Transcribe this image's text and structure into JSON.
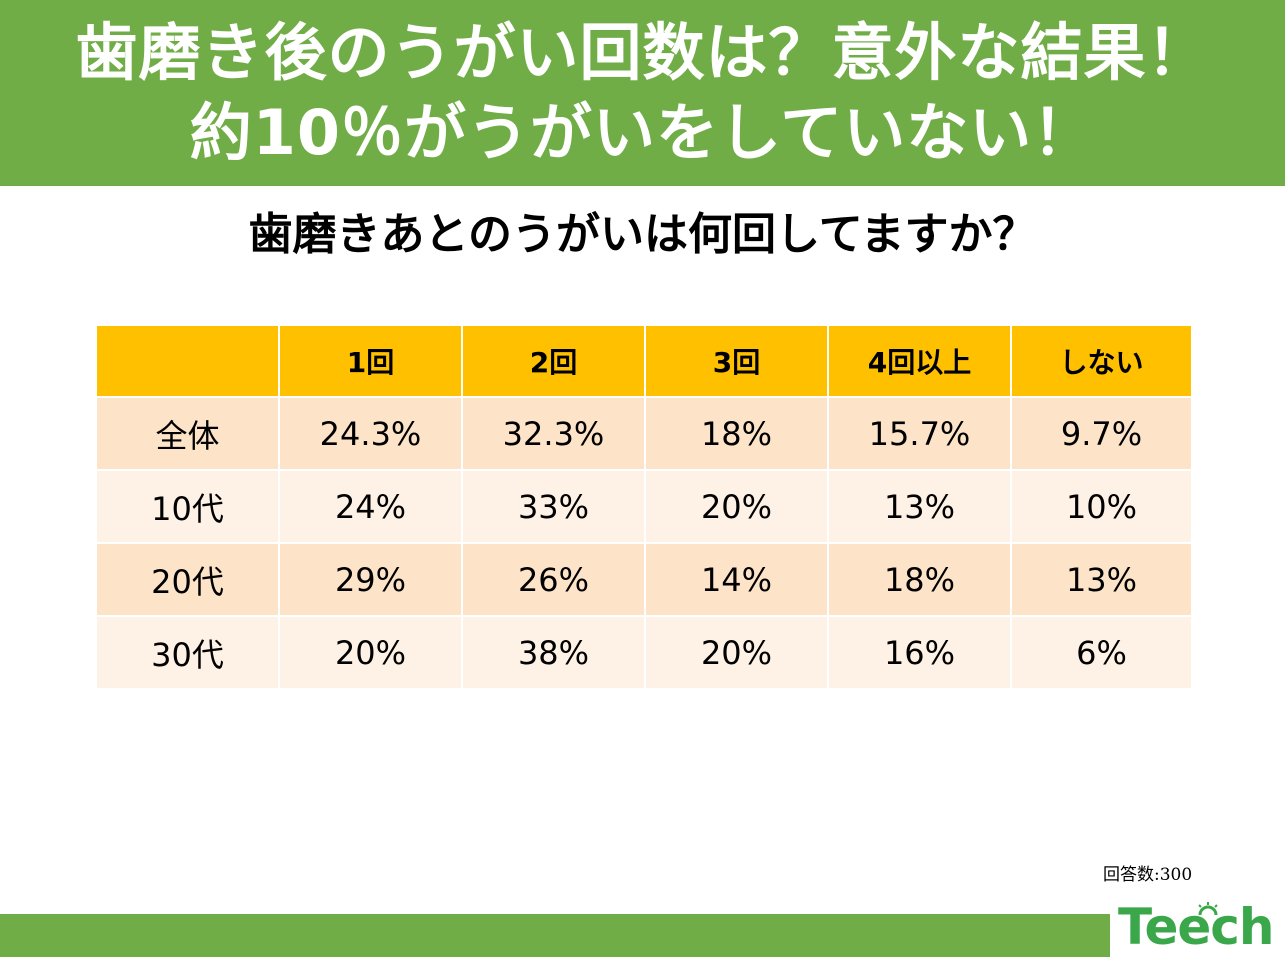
{
  "banner": {
    "line1": "歯磨き後のうがい回数は？意外な結果！",
    "line2": "約10％がうがいをしていない！"
  },
  "question": "歯磨きあとのうがいは何回してますか？",
  "table": {
    "headers": [
      "",
      "1回",
      "2回",
      "3回",
      "4回以上",
      "しない"
    ],
    "rows": [
      [
        "全体",
        "24.3%",
        "32.3%",
        "18%",
        "15.7%",
        "9.7%"
      ],
      [
        "10代",
        "24%",
        "33%",
        "20%",
        "13%",
        "10%"
      ],
      [
        "20代",
        "29%",
        "26%",
        "14%",
        "18%",
        "13%"
      ],
      [
        "30代",
        "20%",
        "38%",
        "20%",
        "16%",
        "6%"
      ]
    ]
  },
  "respondents": "回答数:300",
  "logo": "Teech",
  "colors": {
    "banner": "#70ad47",
    "header_fill": "#ffc000",
    "row_odd": "#fde4c9",
    "row_even": "#fef2e7",
    "logo": "#3aa84a"
  }
}
